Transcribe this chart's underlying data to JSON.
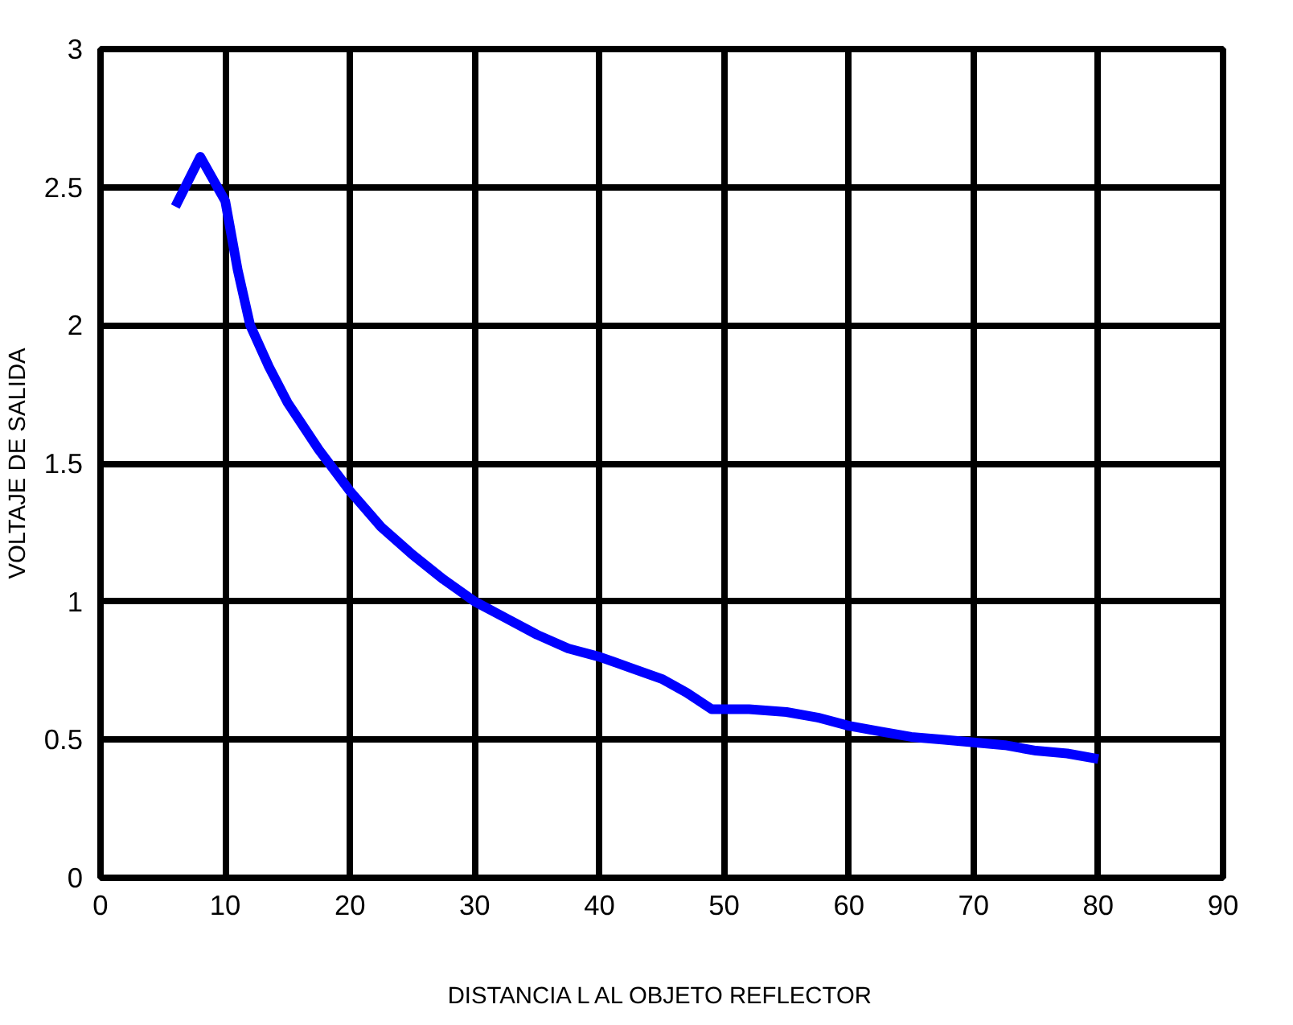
{
  "chart_data": {
    "type": "line",
    "xlabel": "DISTANCIA L AL OBJETO REFLECTOR",
    "ylabel": "VOLTAJE DE SALIDA",
    "xlim": [
      0,
      90
    ],
    "xticks": [
      0,
      10,
      20,
      30,
      40,
      50,
      60,
      70,
      80,
      90
    ],
    "ylim": [
      0,
      3
    ],
    "yticks": [
      0,
      0.5,
      1,
      1.5,
      2,
      2.5,
      3
    ],
    "grid": true,
    "marker": "none",
    "line_style": "solid",
    "series": [
      {
        "color": "#0000ff",
        "x": [
          6,
          8,
          10,
          11,
          12,
          13.5,
          15,
          17.5,
          20,
          22.5,
          25,
          27.5,
          30,
          32.5,
          35,
          37.5,
          40,
          42.5,
          45,
          47,
          49,
          52,
          55,
          57.5,
          60,
          62.5,
          65,
          67.5,
          70,
          72.5,
          75,
          77.5,
          80
        ],
        "values": [
          2.43,
          2.61,
          2.45,
          2.2,
          2.0,
          1.85,
          1.72,
          1.55,
          1.4,
          1.27,
          1.17,
          1.08,
          1.0,
          0.94,
          0.88,
          0.83,
          0.8,
          0.76,
          0.72,
          0.67,
          0.61,
          0.61,
          0.6,
          0.58,
          0.55,
          0.53,
          0.51,
          0.5,
          0.49,
          0.48,
          0.46,
          0.45,
          0.43
        ]
      }
    ]
  }
}
